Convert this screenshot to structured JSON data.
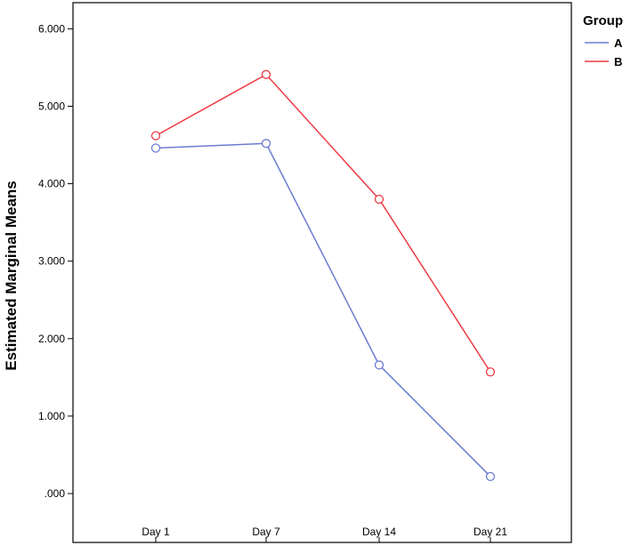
{
  "chart_data": {
    "type": "line",
    "title": "",
    "xlabel": "",
    "ylabel": "Estimated Marginal Means",
    "categories": [
      "Day 1",
      "Day 7",
      "Day 14",
      "Day 21"
    ],
    "y_ticks": [
      ".000",
      "1.000",
      "2.000",
      "3.000",
      "4.000",
      "5.000",
      "6.000"
    ],
    "ylim": [
      -0.35,
      6.35
    ],
    "grid": false,
    "legend_title": "Group",
    "legend_position": "top-right",
    "series": [
      {
        "name": "A",
        "color": "#6b7bcf",
        "values": [
          4.46,
          4.52,
          1.66,
          0.22
        ]
      },
      {
        "name": "B",
        "color": "#ee3a43",
        "values": [
          4.62,
          5.41,
          3.8,
          1.57
        ]
      }
    ]
  }
}
